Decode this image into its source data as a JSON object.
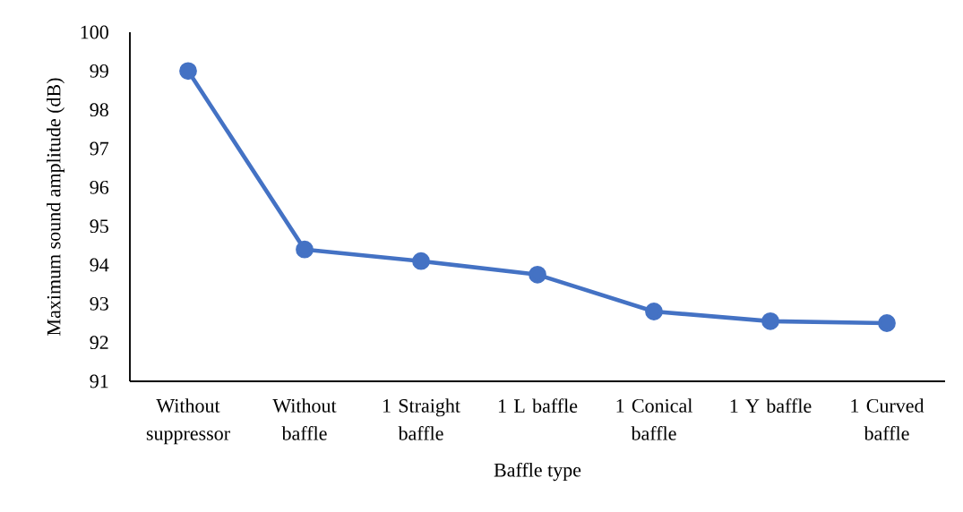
{
  "chart_data": {
    "type": "line",
    "xlabel": "Baffle type",
    "ylabel": "Maximum sound amplitude (dB)",
    "categories": [
      "Without suppressor",
      "Without baffle",
      "1 Straight baffle",
      "1 L baffle",
      "1 Conical baffle",
      "1 Y baffle",
      "1 Curved baffle"
    ],
    "series": [
      {
        "color": "#4472c4",
        "values": [
          99.0,
          94.4,
          94.1,
          93.75,
          92.8,
          92.55,
          92.5
        ]
      }
    ],
    "ylim": [
      91,
      100
    ],
    "yticks": [
      91,
      92,
      93,
      94,
      95,
      96,
      97,
      98,
      99,
      100
    ],
    "marker": "circle",
    "line_style": "solid"
  }
}
